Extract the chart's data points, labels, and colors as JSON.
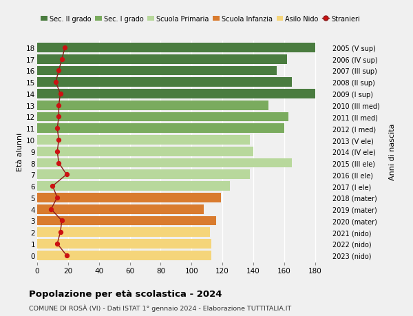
{
  "ages": [
    18,
    17,
    16,
    15,
    14,
    13,
    12,
    11,
    10,
    9,
    8,
    7,
    6,
    5,
    4,
    3,
    2,
    1,
    0
  ],
  "years": [
    "2005 (V sup)",
    "2006 (IV sup)",
    "2007 (III sup)",
    "2008 (II sup)",
    "2009 (I sup)",
    "2010 (III med)",
    "2011 (II med)",
    "2012 (I med)",
    "2013 (V ele)",
    "2014 (IV ele)",
    "2015 (III ele)",
    "2016 (II ele)",
    "2017 (I ele)",
    "2018 (mater)",
    "2019 (mater)",
    "2020 (mater)",
    "2021 (nido)",
    "2022 (nido)",
    "2023 (nido)"
  ],
  "bar_values": [
    180,
    162,
    155,
    165,
    180,
    150,
    163,
    160,
    138,
    140,
    165,
    138,
    125,
    119,
    108,
    116,
    112,
    113,
    113
  ],
  "bar_colors": [
    "#4a7c3f",
    "#4a7c3f",
    "#4a7c3f",
    "#4a7c3f",
    "#4a7c3f",
    "#7aab5e",
    "#7aab5e",
    "#7aab5e",
    "#b8d89c",
    "#b8d89c",
    "#b8d89c",
    "#b8d89c",
    "#b8d89c",
    "#d97b2e",
    "#d97b2e",
    "#d97b2e",
    "#f5d57a",
    "#f5d57a",
    "#f5d57a"
  ],
  "stranieri": [
    18,
    16,
    14,
    12,
    15,
    14,
    14,
    13,
    14,
    13,
    14,
    19,
    10,
    13,
    9,
    16,
    15,
    13,
    19
  ],
  "legend_labels": [
    "Sec. II grado",
    "Sec. I grado",
    "Scuola Primaria",
    "Scuola Infanzia",
    "Asilo Nido",
    "Stranieri"
  ],
  "legend_colors": [
    "#4a7c3f",
    "#7aab5e",
    "#b8d89c",
    "#d97b2e",
    "#f5d57a",
    "#cc2222"
  ],
  "ylabel_left": "Età alunni",
  "ylabel_right": "Anni di nascita",
  "xlim": [
    0,
    190
  ],
  "xticks": [
    0,
    20,
    40,
    60,
    80,
    100,
    120,
    140,
    160,
    180
  ],
  "title": "Popolazione per età scolastica - 2024",
  "subtitle": "COMUNE DI ROSÀ (VI) - Dati ISTAT 1° gennaio 2024 - Elaborazione TUTTITALIA.IT",
  "bg_color": "#f0f0f0",
  "bar_height": 0.82,
  "stranieri_line_color": "#8b1a1a",
  "stranieri_dot_color": "#cc1111"
}
